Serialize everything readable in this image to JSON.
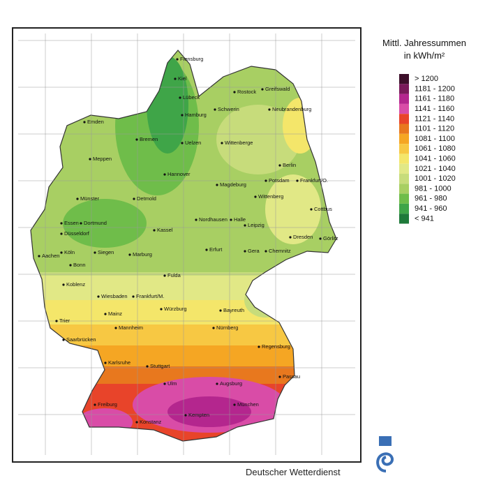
{
  "legend": {
    "title": [
      "Mittl. Jahressummen",
      "in kWh/m²"
    ],
    "items": [
      {
        "label": "> 1200",
        "color": "#3d0f2a"
      },
      {
        "label": "1181 - 1200",
        "color": "#7a1a5a"
      },
      {
        "label": "1161 - 1180",
        "color": "#b4268e"
      },
      {
        "label": "1141 - 1160",
        "color": "#d94ca7"
      },
      {
        "label": "1121 - 1140",
        "color": "#e8442a"
      },
      {
        "label": "1101 - 1120",
        "color": "#e8781e"
      },
      {
        "label": "1081 - 1100",
        "color": "#f5a623"
      },
      {
        "label": "1061 - 1080",
        "color": "#f7c843"
      },
      {
        "label": "1041 - 1060",
        "color": "#f4e66a"
      },
      {
        "label": "1021 - 1040",
        "color": "#e1e886"
      },
      {
        "label": "1001 - 1020",
        "color": "#c7dc7b"
      },
      {
        "label": "981 - 1000",
        "color": "#a8cf63"
      },
      {
        "label": "961 - 980",
        "color": "#6fbd4a"
      },
      {
        "label": "941 - 960",
        "color": "#3fa548"
      },
      {
        "label": "< 941",
        "color": "#1f7a3a"
      }
    ]
  },
  "cities": [
    "Flensburg",
    "Kiel",
    "Lübeck",
    "Rostock",
    "Greifswald",
    "Hamburg",
    "Schwerin",
    "Neubrandenburg",
    "Emden",
    "Bremen",
    "Uelzen",
    "Wittenberge",
    "Meppen",
    "Hannover",
    "Berlin",
    "Potsdam",
    "Frankfurt/O.",
    "Magdeburg",
    "Münster",
    "Detmold",
    "Wittenberg",
    "Cottbus",
    "Essen",
    "Dortmund",
    "Düsseldorf",
    "Kassel",
    "Nordhausen",
    "Halle",
    "Leipzig",
    "Dresden",
    "Görlitz",
    "Köln",
    "Siegen",
    "Marburg",
    "Erfurt",
    "Gera",
    "Chemnitz",
    "Aachen",
    "Bonn",
    "Fulda",
    "Koblenz",
    "Wiesbaden",
    "Frankfurt/M.",
    "Würzburg",
    "Bayreuth",
    "Trier",
    "Mainz",
    "Mannheim",
    "Nürnberg",
    "Saarbrücken",
    "Regensburg",
    "Karlsruhe",
    "Stuttgart",
    "Ulm",
    "Augsburg",
    "Passau",
    "München",
    "Freiburg",
    "Kempten",
    "Konstanz"
  ],
  "footer": "Deutscher Wetterdienst"
}
